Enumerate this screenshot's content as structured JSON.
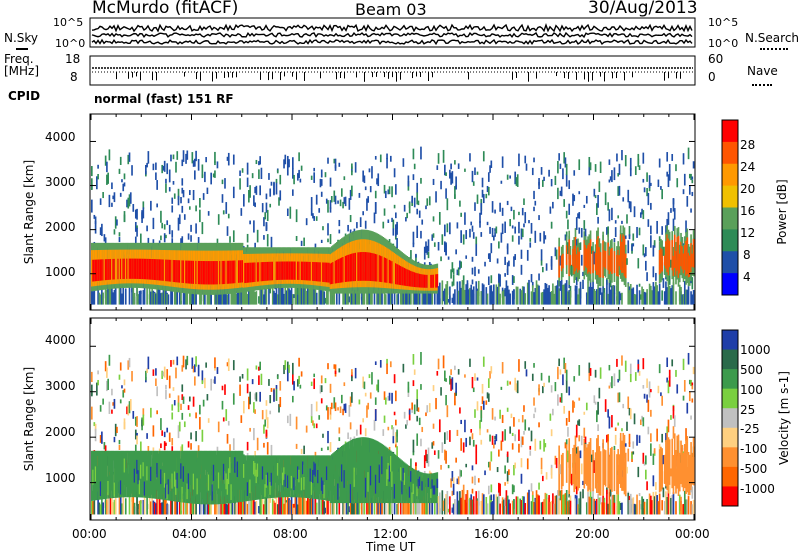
{
  "header": {
    "station": "McMurdo (fitACF)",
    "beam": "Beam 03",
    "date": "30/Aug/2013",
    "cpid_label": "CPID",
    "cpid_value": "normal (fast) 151 RF"
  },
  "noise_panel": {
    "left_label": "N.Sky",
    "right_label": "N.Search",
    "left_ticks": [
      "10^5",
      "10^0"
    ],
    "right_ticks": [
      "10^5",
      "10^0"
    ]
  },
  "freq_panel": {
    "left_label_top": "Freq.",
    "left_label_bottom": "[MHz]",
    "left_ticks": [
      "18",
      "8"
    ],
    "right_label": "Nave",
    "right_ticks": [
      "60",
      "0"
    ]
  },
  "colors": {
    "power_scale": [
      "#0000ff",
      "#1f4fa8",
      "#2e8b57",
      "#5aa05a",
      "#f0c000",
      "#ff9900",
      "#ff5500",
      "#ff0000"
    ],
    "velocity_scale": [
      "#1f3ea8",
      "#2a6a4a",
      "#3c9a4c",
      "#7ad040",
      "#c0c0c0",
      "#ffd080",
      "#ff9030",
      "#ff6600",
      "#ff0000"
    ]
  },
  "chart_data": [
    {
      "type": "heatmap",
      "name": "power",
      "ylabel": "Slant Range [km]",
      "ylim": [
        200,
        4600
      ],
      "yticks": [
        "1000",
        "2000",
        "3000",
        "4000"
      ],
      "xlim": [
        0,
        24
      ],
      "colorbar_label": "Power [dB]",
      "colorbar_ticks": [
        "4",
        "8",
        "12",
        "16",
        "20",
        "24",
        "28"
      ],
      "colorbar_range": [
        0,
        32
      ]
    },
    {
      "type": "heatmap",
      "name": "velocity",
      "ylabel": "Slant Range [km]",
      "ylim": [
        200,
        4600
      ],
      "yticks": [
        "1000",
        "2000",
        "3000",
        "4000"
      ],
      "xlim": [
        0,
        24
      ],
      "xlabel": "Time UT",
      "xticks": [
        "00:00",
        "04:00",
        "08:00",
        "12:00",
        "16:00",
        "20:00",
        "00:00"
      ],
      "colorbar_label": "Velocity [m s-1]",
      "colorbar_ticks": [
        "1000",
        "500",
        "100",
        "25",
        "-25",
        "-100",
        "-500",
        "-1000"
      ]
    }
  ]
}
